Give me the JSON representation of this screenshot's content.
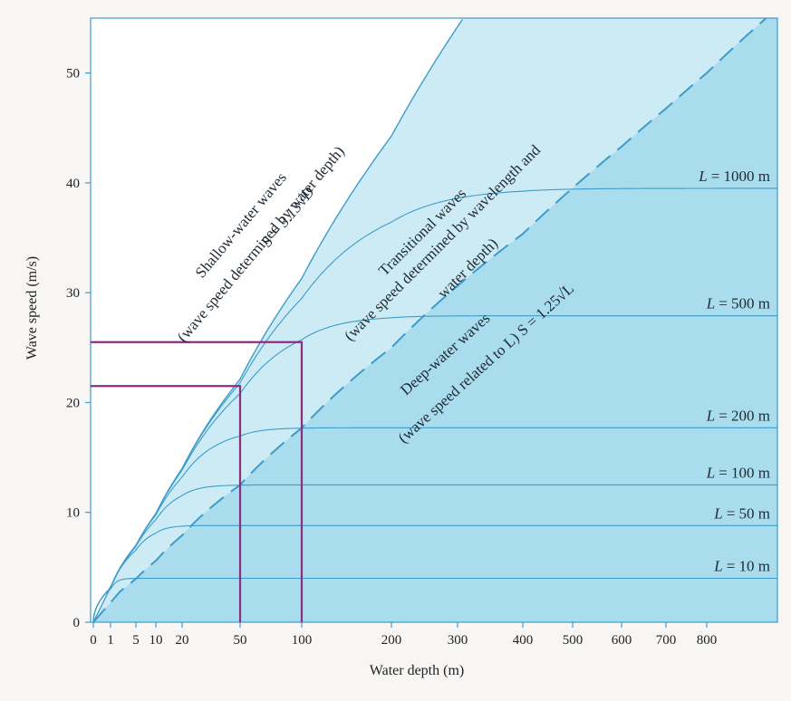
{
  "chart_data": {
    "type": "line",
    "xlabel": "Water depth (m)",
    "ylabel": "Wave speed (m/s)",
    "ylim": [
      0,
      55
    ],
    "x_ticks": [
      {
        "value": 0,
        "label": "0"
      },
      {
        "value": 1,
        "label": "1"
      },
      {
        "value": 5,
        "label": "5"
      },
      {
        "value": 10,
        "label": "10"
      },
      {
        "value": 20,
        "label": "20"
      },
      {
        "value": 50,
        "label": "50"
      },
      {
        "value": 100,
        "label": "100"
      },
      {
        "value": 200,
        "label": "200"
      },
      {
        "value": 300,
        "label": "300"
      },
      {
        "value": 400,
        "label": "400"
      },
      {
        "value": 500,
        "label": "500"
      },
      {
        "value": 600,
        "label": "600"
      },
      {
        "value": 700,
        "label": "700"
      },
      {
        "value": 800,
        "label": "800"
      }
    ],
    "y_ticks": [
      0,
      10,
      20,
      30,
      40,
      50
    ],
    "shallow_line": {
      "formula": "S = 3.13√D",
      "coefficient": 3.13
    },
    "deep_line": {
      "formula": "S = 1.25√L",
      "coefficient": 1.25,
      "style": "dashed"
    },
    "wavelength_curves": [
      {
        "label_prefix": "L",
        "label_value": "= 1000 m",
        "wavelength": 1000,
        "deep_speed": 39.5
      },
      {
        "label_prefix": "L",
        "label_value": "= 500 m",
        "wavelength": 500,
        "deep_speed": 27.9
      },
      {
        "label_prefix": "L",
        "label_value": "= 200 m",
        "wavelength": 200,
        "deep_speed": 17.7
      },
      {
        "label_prefix": "L",
        "label_value": "= 100 m",
        "wavelength": 100,
        "deep_speed": 12.5
      },
      {
        "label_prefix": "L",
        "label_value": "= 50 m",
        "wavelength": 50,
        "deep_speed": 8.8
      },
      {
        "label_prefix": "L",
        "label_value": "= 10 m",
        "wavelength": 10,
        "deep_speed": 4.0
      }
    ],
    "reference_lines": [
      {
        "depth": 50,
        "speed": 21.5
      },
      {
        "depth": 100,
        "speed": 25.5
      }
    ],
    "zones": {
      "shallow": {
        "line1": "Shallow-water waves",
        "line2": "(wave speed determined by water depth)",
        "line3": "S = 3.13√D"
      },
      "transitional": {
        "line1": "Transitional waves",
        "line2": "(wave speed determined by wavelength and",
        "line3": "water depth)"
      },
      "deep": {
        "line1": "Deep-water waves",
        "line2": "(wave speed related to L) S = 1.25√L"
      }
    },
    "colors": {
      "deep_fill": "#a9dcec",
      "transitional_fill": "#cdebf4",
      "shallow_fill": "#ffffff",
      "curve": "#3d9cc9",
      "reference": "#8e2c7f",
      "axis": "#3d9cc9"
    }
  }
}
